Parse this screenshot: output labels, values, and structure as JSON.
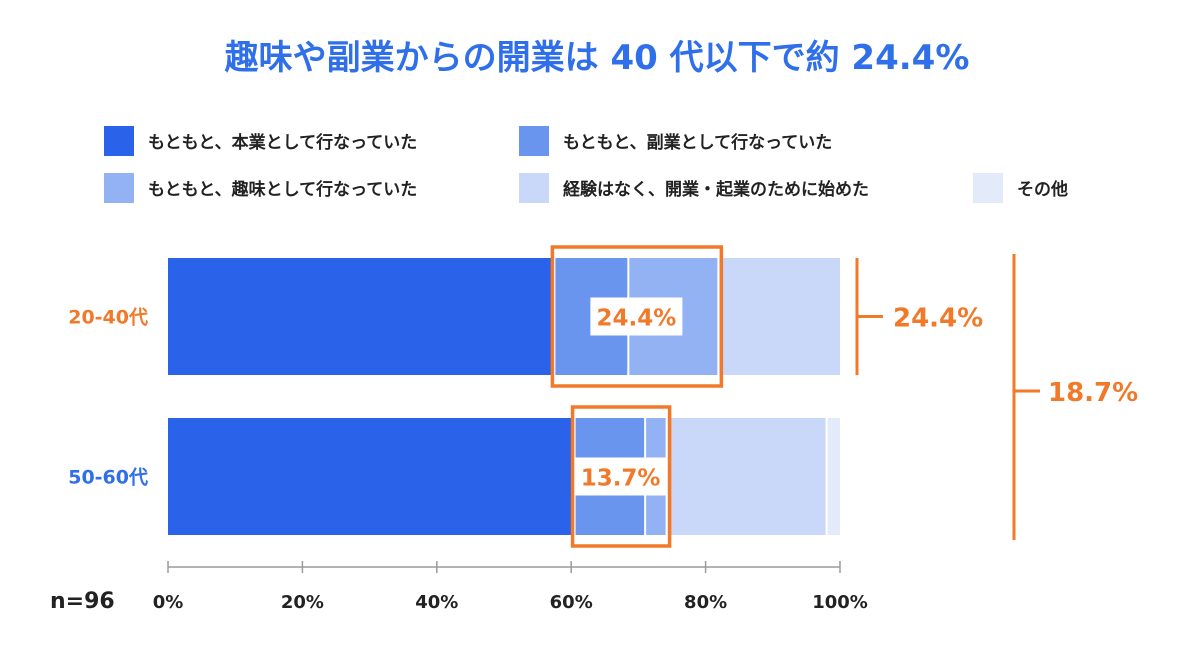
{
  "chart_data": {
    "type": "bar",
    "orientation": "horizontal",
    "stacked": true,
    "title": "趣味や副業からの開業は 40 代以下で約 24.4%",
    "categories": [
      "20-40代",
      "50-60代"
    ],
    "category_colors": [
      "#f07a2a",
      "#2f6fea"
    ],
    "series": [
      {
        "name": "もともと、本業として行なっていた",
        "color": "#2b62ea",
        "values": [
          57.5,
          60.5
        ]
      },
      {
        "name": "もともと、副業として行なっていた",
        "color": "#6a95ef",
        "values": [
          11.0,
          10.5
        ]
      },
      {
        "name": "もともと、趣味として行なっていた",
        "color": "#93b2f4",
        "values": [
          13.4,
          3.2
        ]
      },
      {
        "name": "経験はなく、開業・起業のために始めた",
        "color": "#c9d8f8",
        "values": [
          18.1,
          23.8
        ]
      },
      {
        "name": "その他",
        "color": "#e3ebfb",
        "values": [
          0.0,
          2.0
        ]
      }
    ],
    "xlim": [
      0,
      100
    ],
    "xticks": [
      "0%",
      "20%",
      "40%",
      "60%",
      "80%",
      "100%"
    ],
    "n_label": "n=96",
    "legend_position": "top",
    "accent_color": "#f07a2a",
    "annotations": {
      "highlight_labels": [
        "24.4%",
        "13.7%"
      ],
      "bracket_label": "24.4%",
      "total_bracket_label": "18.7%"
    }
  }
}
